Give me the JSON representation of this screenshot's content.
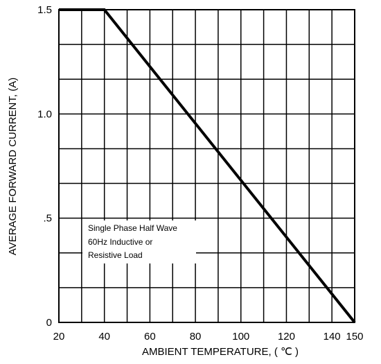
{
  "chart_data": {
    "type": "line",
    "xlabel": "AMBIENT TEMPERATURE, ( ℃ )",
    "ylabel": "AVERAGE FORWARD CURRENT, (A)",
    "xlim": [
      20,
      150
    ],
    "ylim": [
      0,
      1.5
    ],
    "x_ticks": [
      20,
      40,
      60,
      80,
      100,
      120,
      140,
      150
    ],
    "x_tick_labels": [
      "20",
      "40",
      "60",
      "80",
      "100",
      "120",
      "140",
      "150"
    ],
    "y_ticks": [
      0,
      0.5,
      1.0,
      1.5
    ],
    "y_tick_labels": [
      "0",
      ".5",
      "1.0",
      "1.5"
    ],
    "grid": true,
    "grid_x_step": 10,
    "grid_y_step": 0.1667,
    "series": [
      {
        "x": [
          20,
          40,
          150
        ],
        "y": [
          1.5,
          1.5,
          0
        ],
        "color": "#000000"
      }
    ],
    "annotation": {
      "lines": [
        "Single Phase Half Wave",
        "60Hz Inductive or",
        "Resistive Load"
      ]
    }
  }
}
